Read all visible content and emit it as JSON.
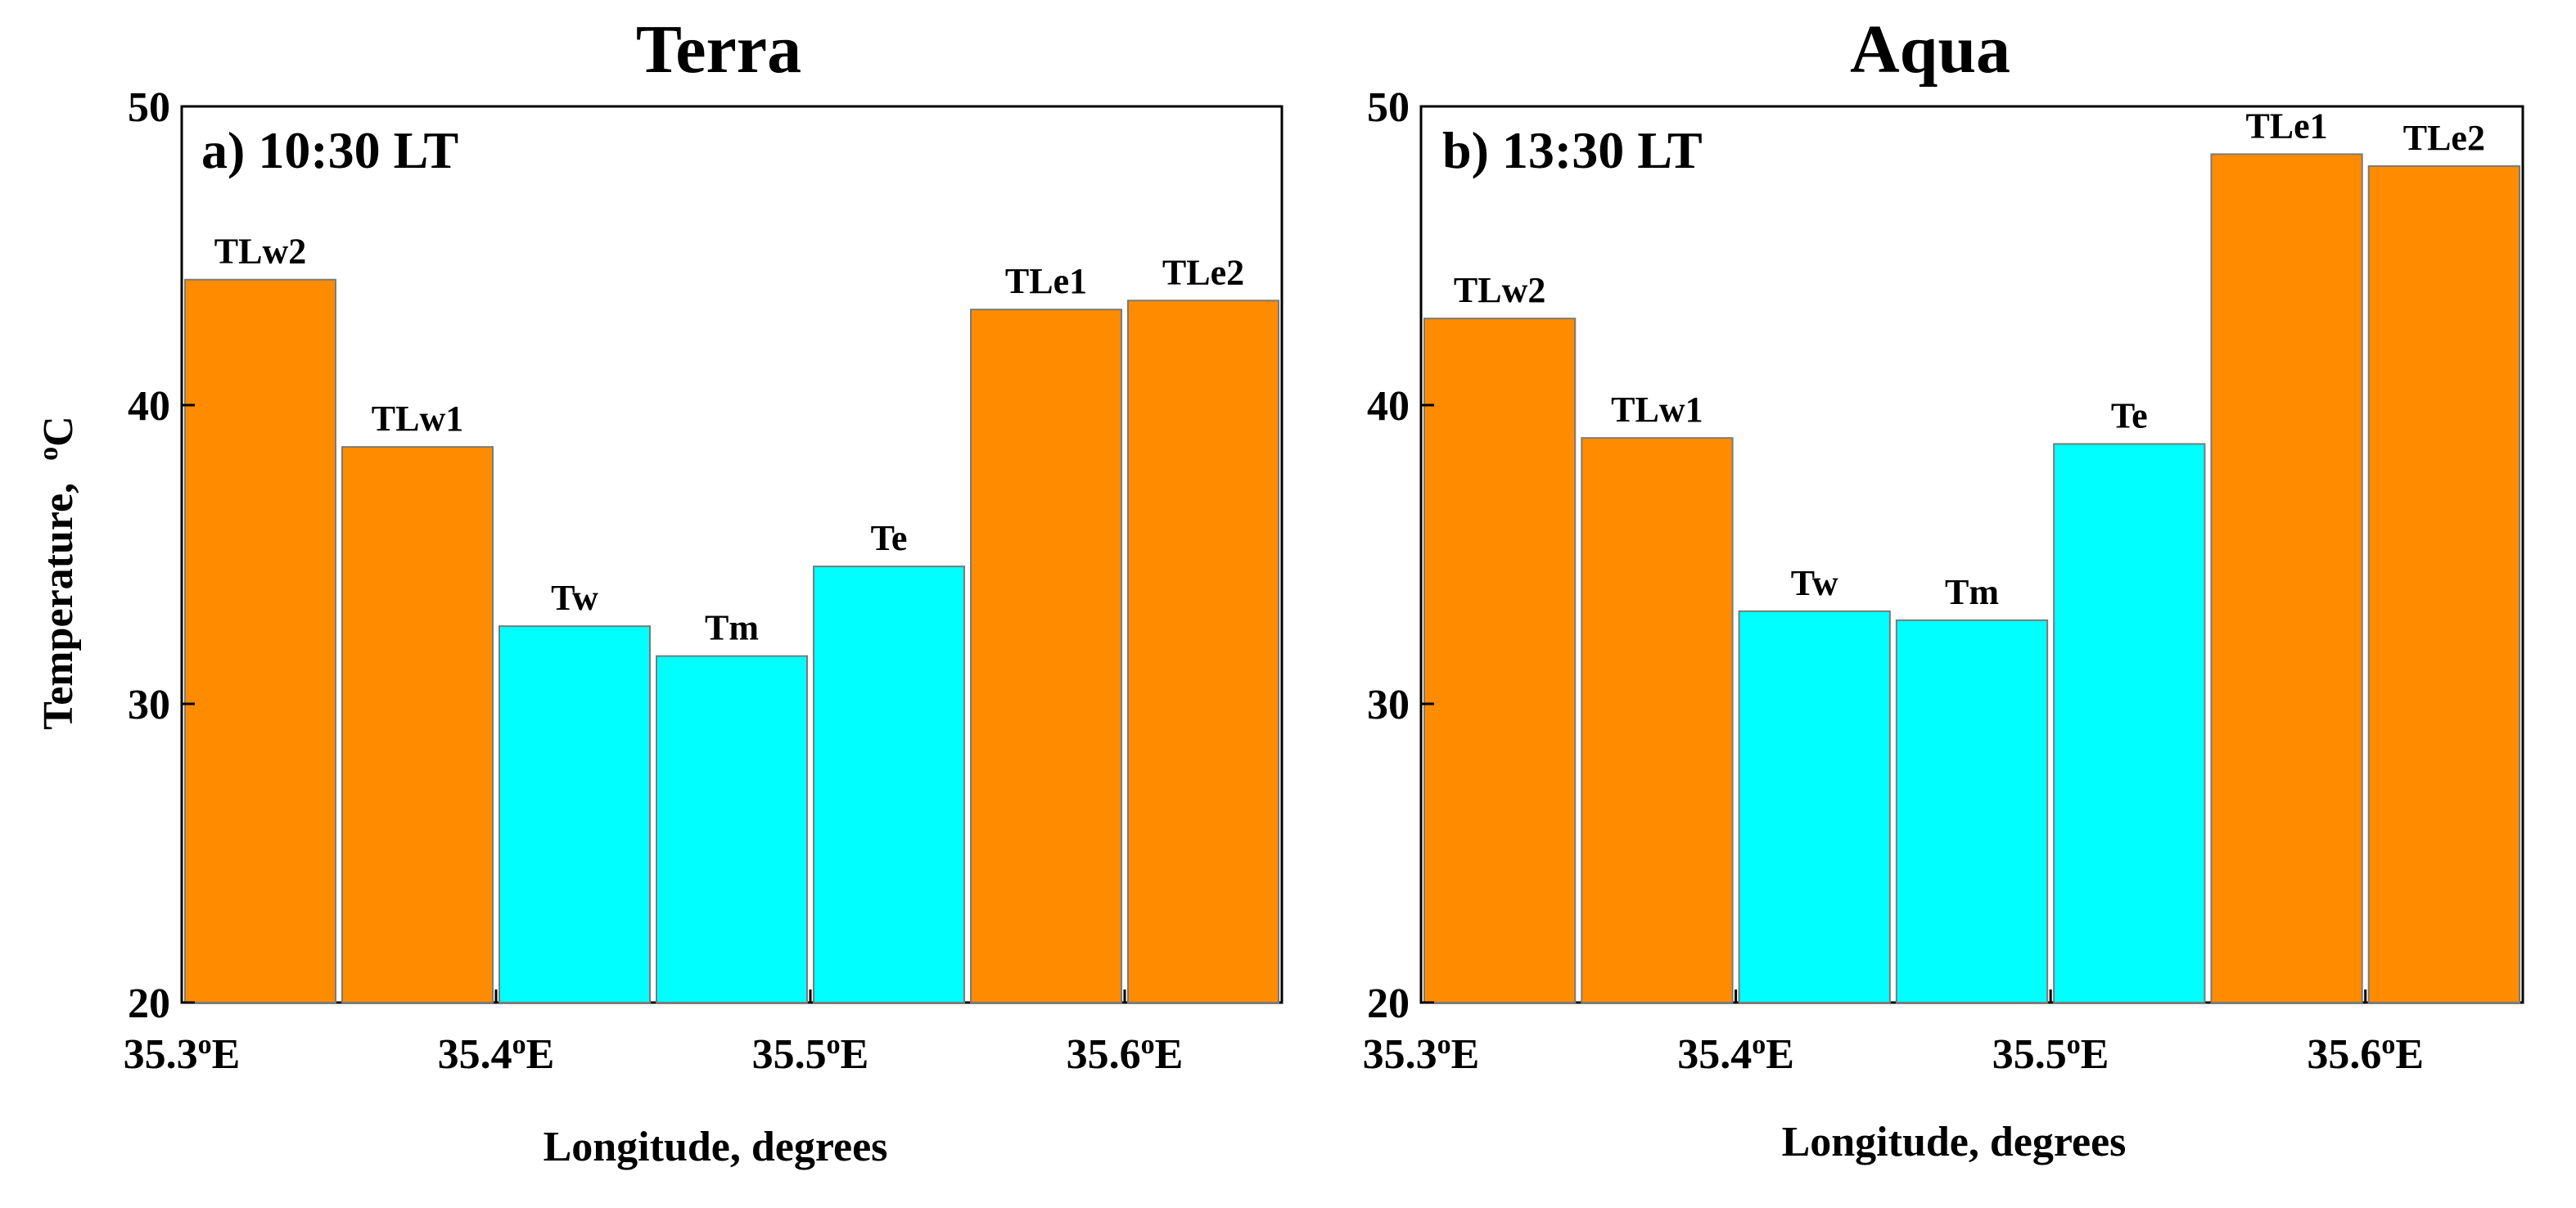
{
  "figure": {
    "ylabel": "Temperature,",
    "ylabel_unit": "°C",
    "xlabel": "Longitude,  degrees"
  },
  "colors": {
    "land": "#ff8c00",
    "lake": "#00ffff"
  },
  "chart_data": [
    {
      "type": "bar",
      "title": "Terra",
      "panel_label": "a)  10:30 LT",
      "xlabel": "Longitude,  degrees",
      "ylabel": "Temperature, °C",
      "xlim": [
        35.3,
        35.65
      ],
      "ylim": [
        20,
        50
      ],
      "yticks": [
        20,
        30,
        40,
        50
      ],
      "xticks": [
        {
          "value": 35.3,
          "label": "35.3",
          "sup": "o",
          "suffix": "E"
        },
        {
          "value": 35.4,
          "label": "35.4",
          "sup": "o",
          "suffix": "E"
        },
        {
          "value": 35.5,
          "label": "35.5",
          "sup": "o",
          "suffix": "E"
        },
        {
          "value": 35.6,
          "label": "35.6",
          "sup": "o",
          "suffix": "E"
        }
      ],
      "bars": [
        {
          "label": "TLw2",
          "x0": 35.3,
          "x1": 35.35,
          "value": 44.2,
          "type": "land"
        },
        {
          "label": "TLw1",
          "x0": 35.35,
          "x1": 35.4,
          "value": 38.6,
          "type": "land"
        },
        {
          "label": "Tw",
          "x0": 35.4,
          "x1": 35.45,
          "value": 32.6,
          "type": "lake"
        },
        {
          "label": "Tm",
          "x0": 35.45,
          "x1": 35.5,
          "value": 31.6,
          "type": "lake"
        },
        {
          "label": "Te",
          "x0": 35.5,
          "x1": 35.55,
          "value": 34.6,
          "type": "lake"
        },
        {
          "label": "TLe1",
          "x0": 35.55,
          "x1": 35.6,
          "value": 43.2,
          "type": "land"
        },
        {
          "label": "TLe2",
          "x0": 35.6,
          "x1": 35.65,
          "value": 43.5,
          "type": "land"
        }
      ]
    },
    {
      "type": "bar",
      "title": "Aqua",
      "panel_label": "b)  13:30 LT",
      "xlabel": "Longitude,  degrees",
      "ylabel": "",
      "xlim": [
        35.3,
        35.65
      ],
      "ylim": [
        20,
        50
      ],
      "yticks": [
        20,
        30,
        40,
        50
      ],
      "xticks": [
        {
          "value": 35.3,
          "label": "35.3",
          "sup": "o",
          "suffix": "E"
        },
        {
          "value": 35.4,
          "label": "35.4",
          "sup": "o",
          "suffix": "E"
        },
        {
          "value": 35.5,
          "label": "35.5",
          "sup": "o",
          "suffix": "E"
        },
        {
          "value": 35.6,
          "label": "35.6",
          "sup": "o",
          "suffix": "E"
        }
      ],
      "bars": [
        {
          "label": "TLw2",
          "x0": 35.3,
          "x1": 35.35,
          "value": 42.9,
          "type": "land"
        },
        {
          "label": "TLw1",
          "x0": 35.35,
          "x1": 35.4,
          "value": 38.9,
          "type": "land"
        },
        {
          "label": "Tw",
          "x0": 35.4,
          "x1": 35.45,
          "value": 33.1,
          "type": "lake"
        },
        {
          "label": "Tm",
          "x0": 35.45,
          "x1": 35.5,
          "value": 32.8,
          "type": "lake"
        },
        {
          "label": "Te",
          "x0": 35.5,
          "x1": 35.55,
          "value": 38.7,
          "type": "lake"
        },
        {
          "label": "TLe1",
          "x0": 35.55,
          "x1": 35.6,
          "value": 48.4,
          "type": "land"
        },
        {
          "label": "TLe2",
          "x0": 35.6,
          "x1": 35.65,
          "value": 48.0,
          "type": "land"
        }
      ]
    }
  ]
}
